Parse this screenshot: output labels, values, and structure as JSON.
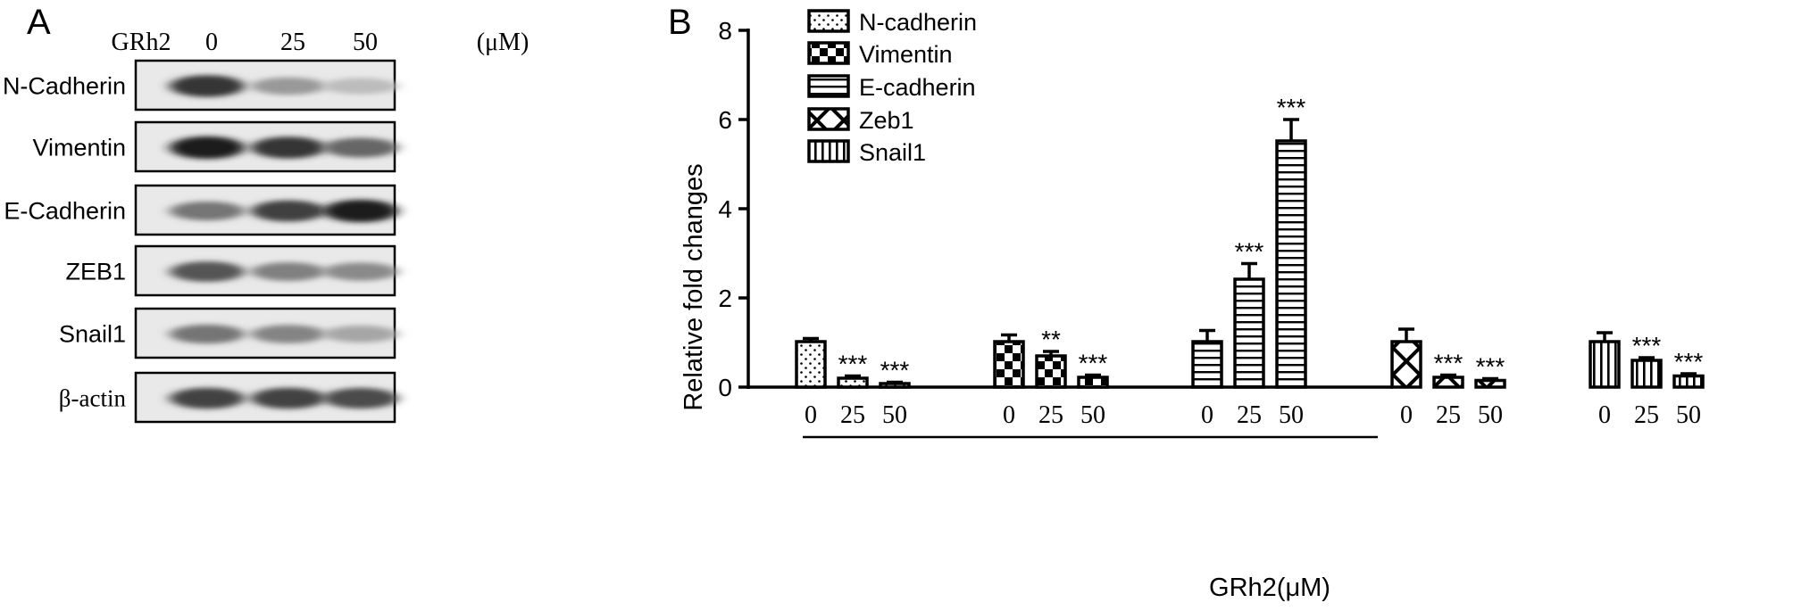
{
  "panel_a": {
    "letter": "A",
    "treatment_label": "GRh2",
    "doses": [
      "0",
      "25",
      "50"
    ],
    "unit": "(μM)",
    "blots": [
      {
        "label": "N-Cadherin",
        "intensity": [
          0.85,
          0.38,
          0.22
        ]
      },
      {
        "label": "Vimentin",
        "intensity": [
          0.95,
          0.85,
          0.62
        ]
      },
      {
        "label": "E-Cadherin",
        "intensity": [
          0.55,
          0.8,
          0.95
        ]
      },
      {
        "label": "ZEB1",
        "intensity": [
          0.7,
          0.5,
          0.45
        ]
      },
      {
        "label": "Snail1",
        "intensity": [
          0.55,
          0.48,
          0.32
        ]
      },
      {
        "label": "β-actin",
        "intensity": [
          0.78,
          0.78,
          0.74
        ]
      }
    ]
  },
  "panel_b": {
    "letter": "B",
    "chart_data": {
      "type": "bar",
      "ylabel": "Relative fold changes",
      "xlabel": "GRh2(μM)",
      "ylim": [
        0,
        8
      ],
      "yticks": [
        0,
        2,
        4,
        6,
        8
      ],
      "categories": [
        "0",
        "25",
        "50"
      ],
      "legend_position": "top-left",
      "series": [
        {
          "name": "N-cadherin",
          "pattern": "dots",
          "values": [
            1.02,
            0.2,
            0.08
          ],
          "errors": [
            0.07,
            0.05,
            0.03
          ],
          "significance": [
            "",
            "***",
            "***"
          ]
        },
        {
          "name": "Vimentin",
          "pattern": "checker",
          "values": [
            1.02,
            0.7,
            0.22
          ],
          "errors": [
            0.15,
            0.1,
            0.05
          ],
          "significance": [
            "",
            "**",
            "***"
          ]
        },
        {
          "name": "E-cadherin",
          "pattern": "hlines",
          "values": [
            1.02,
            2.42,
            5.52
          ],
          "errors": [
            0.25,
            0.35,
            0.48
          ],
          "significance": [
            "",
            "***",
            "***"
          ]
        },
        {
          "name": "Zeb1",
          "pattern": "diamond",
          "values": [
            1.02,
            0.22,
            0.15
          ],
          "errors": [
            0.28,
            0.05,
            0.04
          ],
          "significance": [
            "",
            "***",
            "***"
          ]
        },
        {
          "name": "Snail1",
          "pattern": "vlines",
          "values": [
            1.02,
            0.6,
            0.25
          ],
          "errors": [
            0.2,
            0.06,
            0.05
          ],
          "significance": [
            "",
            "***",
            "***"
          ]
        }
      ]
    }
  }
}
